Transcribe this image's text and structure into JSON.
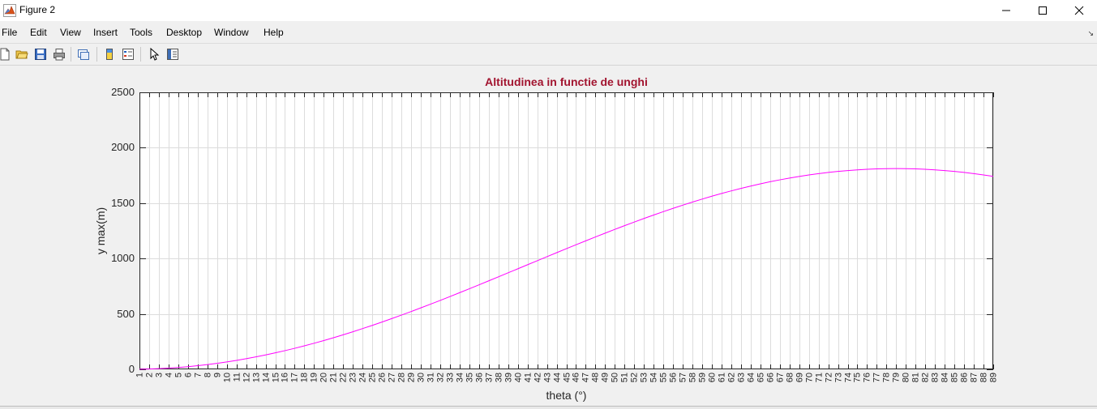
{
  "window": {
    "title": "Figure 2",
    "minimize_icon": "minimize-icon",
    "maximize_icon": "maximize-icon",
    "close_icon": "close-icon"
  },
  "menu": {
    "items": [
      "File",
      "Edit",
      "View",
      "Insert",
      "Tools",
      "Desktop",
      "Window",
      "Help"
    ]
  },
  "toolbar": {
    "icons": [
      "new-figure-icon",
      "open-file-icon",
      "save-icon",
      "print-icon",
      "link-plot-icon",
      "insert-colorbar-icon",
      "insert-legend-icon",
      "edit-plot-icon",
      "property-inspector-icon"
    ]
  },
  "colors": {
    "title": "#a2142f",
    "line": "#ff00ff",
    "grid": "#dcdcdc",
    "axes_background": "#ffffff",
    "figure_background": "#f0f0f0"
  },
  "chart_data": {
    "type": "line",
    "title": "Altitudinea in functie de unghi",
    "xlabel": "theta (°)",
    "ylabel": "y max(m)",
    "xlim": [
      1,
      89
    ],
    "ylim": [
      0,
      2500
    ],
    "xticks": [
      1,
      2,
      3,
      4,
      5,
      6,
      7,
      8,
      9,
      10,
      11,
      12,
      13,
      14,
      15,
      16,
      17,
      18,
      19,
      20,
      21,
      22,
      23,
      24,
      25,
      26,
      27,
      28,
      29,
      30,
      31,
      32,
      33,
      34,
      35,
      36,
      37,
      38,
      39,
      40,
      41,
      42,
      43,
      44,
      45,
      46,
      47,
      48,
      49,
      50,
      51,
      52,
      53,
      54,
      55,
      56,
      57,
      58,
      59,
      60,
      61,
      62,
      63,
      64,
      65,
      66,
      67,
      68,
      69,
      70,
      71,
      72,
      73,
      74,
      75,
      76,
      77,
      78,
      79,
      80,
      81,
      82,
      83,
      84,
      85,
      86,
      87,
      88,
      89
    ],
    "yticks": [
      0,
      500,
      1000,
      1500,
      2000,
      2500
    ],
    "grid": true,
    "series": [
      {
        "x": [
          1,
          2,
          3,
          4,
          5,
          6,
          7,
          8,
          9,
          10,
          11,
          12,
          13,
          14,
          15,
          16,
          17,
          18,
          19,
          20,
          21,
          22,
          23,
          24,
          25,
          26,
          27,
          28,
          29,
          30,
          31,
          32,
          33,
          34,
          35,
          36,
          37,
          38,
          39,
          40,
          41,
          42,
          43,
          44,
          45,
          46,
          47,
          48,
          49,
          50,
          51,
          52,
          53,
          54,
          55,
          56,
          57,
          58,
          59,
          60,
          61,
          62,
          63,
          64,
          65,
          66,
          67,
          68,
          69,
          70,
          71,
          72,
          73,
          74,
          75,
          76,
          77,
          78,
          79,
          80,
          81,
          82,
          83,
          84,
          85,
          86,
          87,
          88,
          89
        ],
        "y": [
          0.7,
          2.7,
          6.1,
          10.8,
          16.8,
          24.2,
          32.9,
          42.9,
          54.2,
          66.8,
          80.6,
          95.8,
          112.1,
          129.7,
          148.6,
          168.6,
          189.7,
          212.0,
          235.4,
          259.8,
          285.3,
          311.8,
          339.2,
          367.6,
          396.8,
          426.8,
          457.7,
          489.3,
          521.5,
          554.5,
          588.0,
          622.0,
          656.6,
          691.6,
          727.0,
          762.7,
          798.6,
          834.7,
          871.0,
          907.4,
          943.8,
          980.1,
          1016.5,
          1052.6,
          1088.5,
          1124.2,
          1159.5,
          1194.5,
          1229.0,
          1263.0,
          1296.4,
          1329.2,
          1361.3,
          1392.7,
          1423.3,
          1453.0,
          1481.8,
          1509.6,
          1536.5,
          1562.3,
          1587.0,
          1610.5,
          1632.9,
          1654.1,
          1674.1,
          1692.8,
          1710.1,
          1726.2,
          1741.0,
          1754.4,
          1766.3,
          1776.9,
          1786.1,
          1794.0,
          1800.4,
          1805.4,
          1809.0,
          1811.0,
          1811.7,
          1811.0,
          1808.9,
          1805.3,
          1800.3,
          1793.9,
          1786.1,
          1777.0,
          1766.5,
          1754.6,
          1741.4
        ]
      }
    ]
  }
}
